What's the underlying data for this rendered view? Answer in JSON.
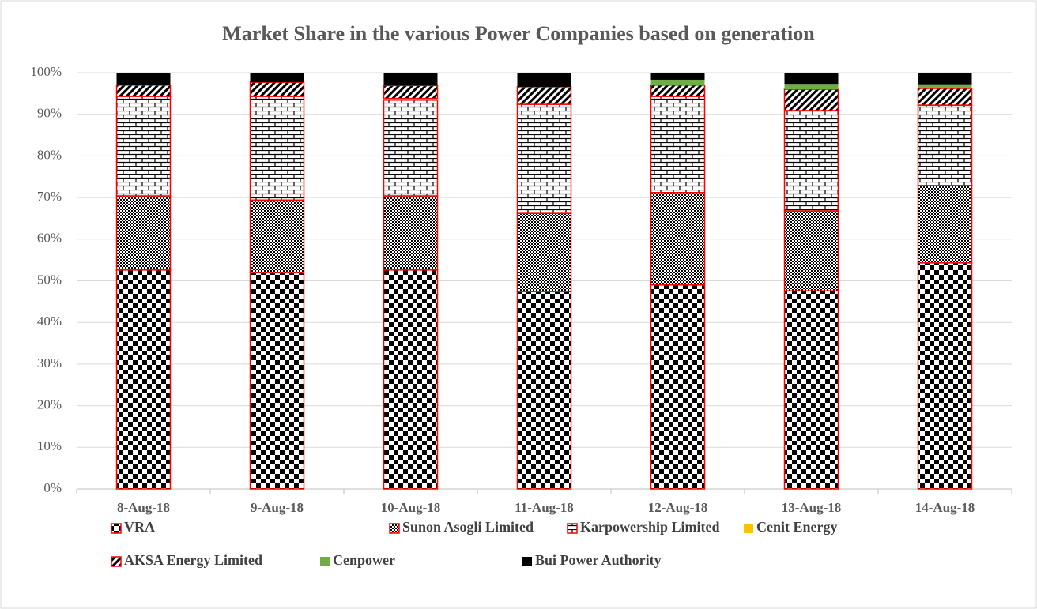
{
  "chart_data": {
    "type": "stacked_bar",
    "title": "Market Share in the various Power Companies based on generation",
    "categories": [
      "8-Aug-18",
      "9-Aug-18",
      "10-Aug-18",
      "11-Aug-18",
      "12-Aug-18",
      "13-Aug-18",
      "14-Aug-18"
    ],
    "series": [
      {
        "name": "VRA",
        "color": "#000000",
        "pattern": "checker",
        "values": [
          52.6,
          52.0,
          52.6,
          47.4,
          49.0,
          47.6,
          54.3
        ]
      },
      {
        "name": "Sunon Asogli Limited",
        "color": "#000000",
        "pattern": "dense-check",
        "values": [
          17.8,
          17.4,
          17.8,
          18.8,
          22.2,
          19.2,
          18.6
        ]
      },
      {
        "name": "Karpowership Limited",
        "color": "#000000",
        "pattern": "brick",
        "values": [
          23.9,
          24.9,
          23.0,
          26.2,
          23.1,
          24.1,
          19.3
        ]
      },
      {
        "name": "Cenit Energy",
        "color": "#ffc000",
        "pattern": "solid",
        "values": [
          0,
          0,
          0.4,
          0,
          0,
          0,
          0
        ]
      },
      {
        "name": "AKSA Energy Limited",
        "color": "#000000",
        "pattern": "diagonal",
        "values": [
          2.7,
          3.4,
          3.1,
          4.2,
          2.7,
          5.1,
          4.0
        ]
      },
      {
        "name": "Cenpower",
        "color": "#70ad47",
        "pattern": "solid",
        "values": [
          0,
          0,
          0,
          0,
          1.3,
          1.3,
          1.0
        ]
      },
      {
        "name": "Bui Power Authority",
        "color": "#000000",
        "pattern": "solid",
        "values": [
          3.0,
          2.3,
          3.1,
          3.4,
          1.7,
          2.7,
          2.8
        ]
      }
    ],
    "outline_color": "#ff0000",
    "ylim": [
      0,
      100
    ],
    "yticks": [
      {
        "value": 0,
        "label": "0%"
      },
      {
        "value": 10,
        "label": "10%"
      },
      {
        "value": 20,
        "label": "20%"
      },
      {
        "value": 30,
        "label": "30%"
      },
      {
        "value": 40,
        "label": "40%"
      },
      {
        "value": 50,
        "label": "50%"
      },
      {
        "value": 60,
        "label": "60%"
      },
      {
        "value": 70,
        "label": "70%"
      },
      {
        "value": 80,
        "label": "80%"
      },
      {
        "value": 90,
        "label": "90%"
      },
      {
        "value": 100,
        "label": "100%"
      }
    ],
    "grid": true,
    "legend": "bottom"
  }
}
